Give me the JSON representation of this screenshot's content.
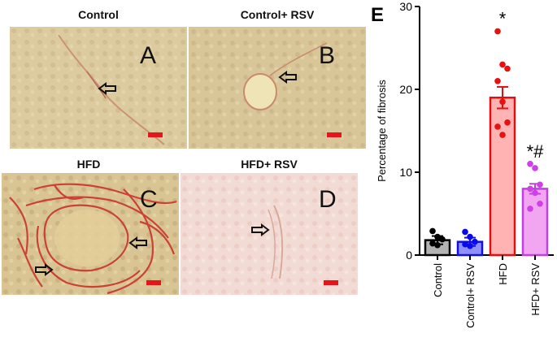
{
  "panels": [
    {
      "title": "Control",
      "letter": "A",
      "tone": "control"
    },
    {
      "title": "Control+ RSV",
      "letter": "B",
      "tone": "control"
    },
    {
      "title": "HFD",
      "letter": "C",
      "tone": "fibrosis"
    },
    {
      "title": "HFD+ RSV",
      "letter": "D",
      "tone": "pale"
    }
  ],
  "colors": {
    "scale_bar": "#e8141c",
    "control_bg": "#d9c79a",
    "pale_bg": "#f2d9d3",
    "collagen": "#c8342b"
  },
  "chart_data": {
    "type": "bar",
    "panel_letter": "E",
    "ylabel": "Percentage of  fibrosis",
    "xlabel": "",
    "ylim": [
      0,
      30
    ],
    "yticks": [
      0,
      10,
      20,
      30
    ],
    "categories": [
      "Control",
      "Control+ RSV",
      "HFD",
      "HFD+ RSV"
    ],
    "values": [
      1.8,
      1.6,
      19.0,
      8.0
    ],
    "errors": [
      0.5,
      0.5,
      1.3,
      0.6
    ],
    "points": [
      [
        2.9,
        2.2,
        1.9,
        1.4,
        1.2
      ],
      [
        2.8,
        2.2,
        1.6,
        1.3,
        1.1
      ],
      [
        27.0,
        23.0,
        22.5,
        21.0,
        18.5,
        16.0,
        15.5,
        14.5
      ],
      [
        11.0,
        10.5,
        8.5,
        8.0,
        7.5,
        6.2,
        5.6
      ]
    ],
    "annotations": [
      "",
      "",
      "*",
      "*#"
    ],
    "bar_fill": [
      "#b3b3b3",
      "#8f8fff",
      "#ffb3b3",
      "#f2a6f2"
    ],
    "bar_stroke": [
      "#000000",
      "#1010e0",
      "#e01010",
      "#c040e0"
    ],
    "point_color": [
      "#000000",
      "#0a0ae8",
      "#e81010",
      "#d040e8"
    ]
  }
}
